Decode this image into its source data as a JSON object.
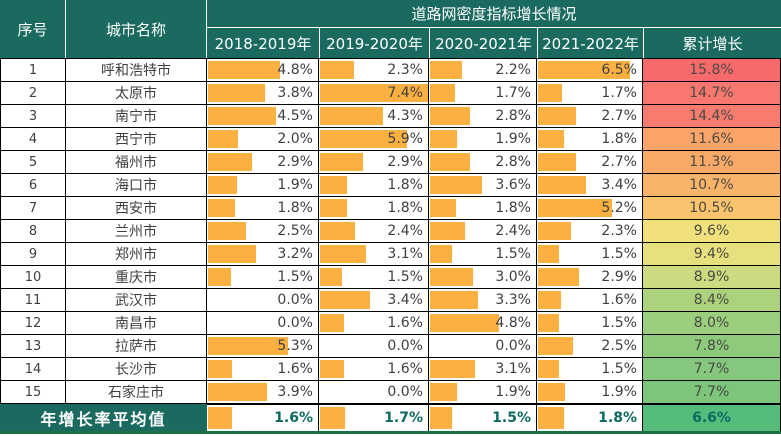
{
  "chart_data": {
    "type": "table",
    "title": "道路网密度指标增长情况",
    "header": {
      "seq_label": "序号",
      "city_label": "城市名称",
      "group_title": "道路网密度指标增长情况",
      "years": [
        "2018-2019年",
        "2019-2020年",
        "2020-2021年",
        "2021-2022年"
      ],
      "cumulative_label": "累计增长"
    },
    "rows": [
      {
        "seq": "1",
        "city": "呼和浩特市",
        "values": [
          4.8,
          2.3,
          2.2,
          6.5
        ],
        "cumulative": 15.8,
        "cumulative_color": "#F8696B"
      },
      {
        "seq": "2",
        "city": "太原市",
        "values": [
          3.8,
          7.4,
          1.7,
          1.7
        ],
        "cumulative": 14.7,
        "cumulative_color": "#F8776E"
      },
      {
        "seq": "3",
        "city": "南宁市",
        "values": [
          4.5,
          4.3,
          2.8,
          2.7
        ],
        "cumulative": 14.4,
        "cumulative_color": "#F87B6F"
      },
      {
        "seq": "4",
        "city": "西宁市",
        "values": [
          2.0,
          5.9,
          1.9,
          1.8
        ],
        "cumulative": 11.6,
        "cumulative_color": "#FAA469"
      },
      {
        "seq": "5",
        "city": "福州市",
        "values": [
          2.9,
          2.9,
          2.8,
          2.7
        ],
        "cumulative": 11.3,
        "cumulative_color": "#F9A967"
      },
      {
        "seq": "6",
        "city": "海口市",
        "values": [
          1.9,
          1.8,
          3.6,
          3.4
        ],
        "cumulative": 10.7,
        "cumulative_color": "#FAB46A"
      },
      {
        "seq": "7",
        "city": "西安市",
        "values": [
          1.8,
          1.8,
          1.8,
          5.2
        ],
        "cumulative": 10.5,
        "cumulative_color": "#FBC36D"
      },
      {
        "seq": "8",
        "city": "兰州市",
        "values": [
          2.5,
          2.4,
          2.4,
          2.3
        ],
        "cumulative": 9.6,
        "cumulative_color": "#F0E17D"
      },
      {
        "seq": "9",
        "city": "郑州市",
        "values": [
          3.2,
          3.1,
          1.5,
          1.5
        ],
        "cumulative": 9.4,
        "cumulative_color": "#E7E07E"
      },
      {
        "seq": "10",
        "city": "重庆市",
        "values": [
          1.5,
          1.5,
          3.0,
          2.9
        ],
        "cumulative": 8.9,
        "cumulative_color": "#CEDA80"
      },
      {
        "seq": "11",
        "city": "武汉市",
        "values": [
          0.0,
          3.4,
          3.3,
          1.6
        ],
        "cumulative": 8.4,
        "cumulative_color": "#ACD27E"
      },
      {
        "seq": "12",
        "city": "南昌市",
        "values": [
          0.0,
          1.6,
          4.8,
          1.5
        ],
        "cumulative": 8.0,
        "cumulative_color": "#9BCE7D"
      },
      {
        "seq": "13",
        "city": "拉萨市",
        "values": [
          5.3,
          0.0,
          0.0,
          2.5
        ],
        "cumulative": 7.8,
        "cumulative_color": "#8ECA7C"
      },
      {
        "seq": "14",
        "city": "长沙市",
        "values": [
          1.6,
          1.6,
          3.1,
          1.5
        ],
        "cumulative": 7.7,
        "cumulative_color": "#85C77C"
      },
      {
        "seq": "15",
        "city": "石家庄市",
        "values": [
          3.9,
          0.0,
          1.9,
          1.9
        ],
        "cumulative": 7.7,
        "cumulative_color": "#7DC57B"
      }
    ],
    "footer": {
      "label": "年增长率平均值",
      "values": [
        1.6,
        1.7,
        1.5,
        1.8
      ],
      "cumulative": 6.6,
      "cumulative_color": "#55BC7C"
    },
    "bar_scale_max": 7.4,
    "value_format": "percent_one_decimal",
    "legend_position": "none",
    "grid": true
  },
  "colors": {
    "header_bg": "#1A6A60",
    "bar": "#FBB042",
    "footer_value_text": "#0C6A5F",
    "bottom_border": "#1E7145",
    "body_text": "#3F3F3F",
    "grid_border": "#000000"
  }
}
